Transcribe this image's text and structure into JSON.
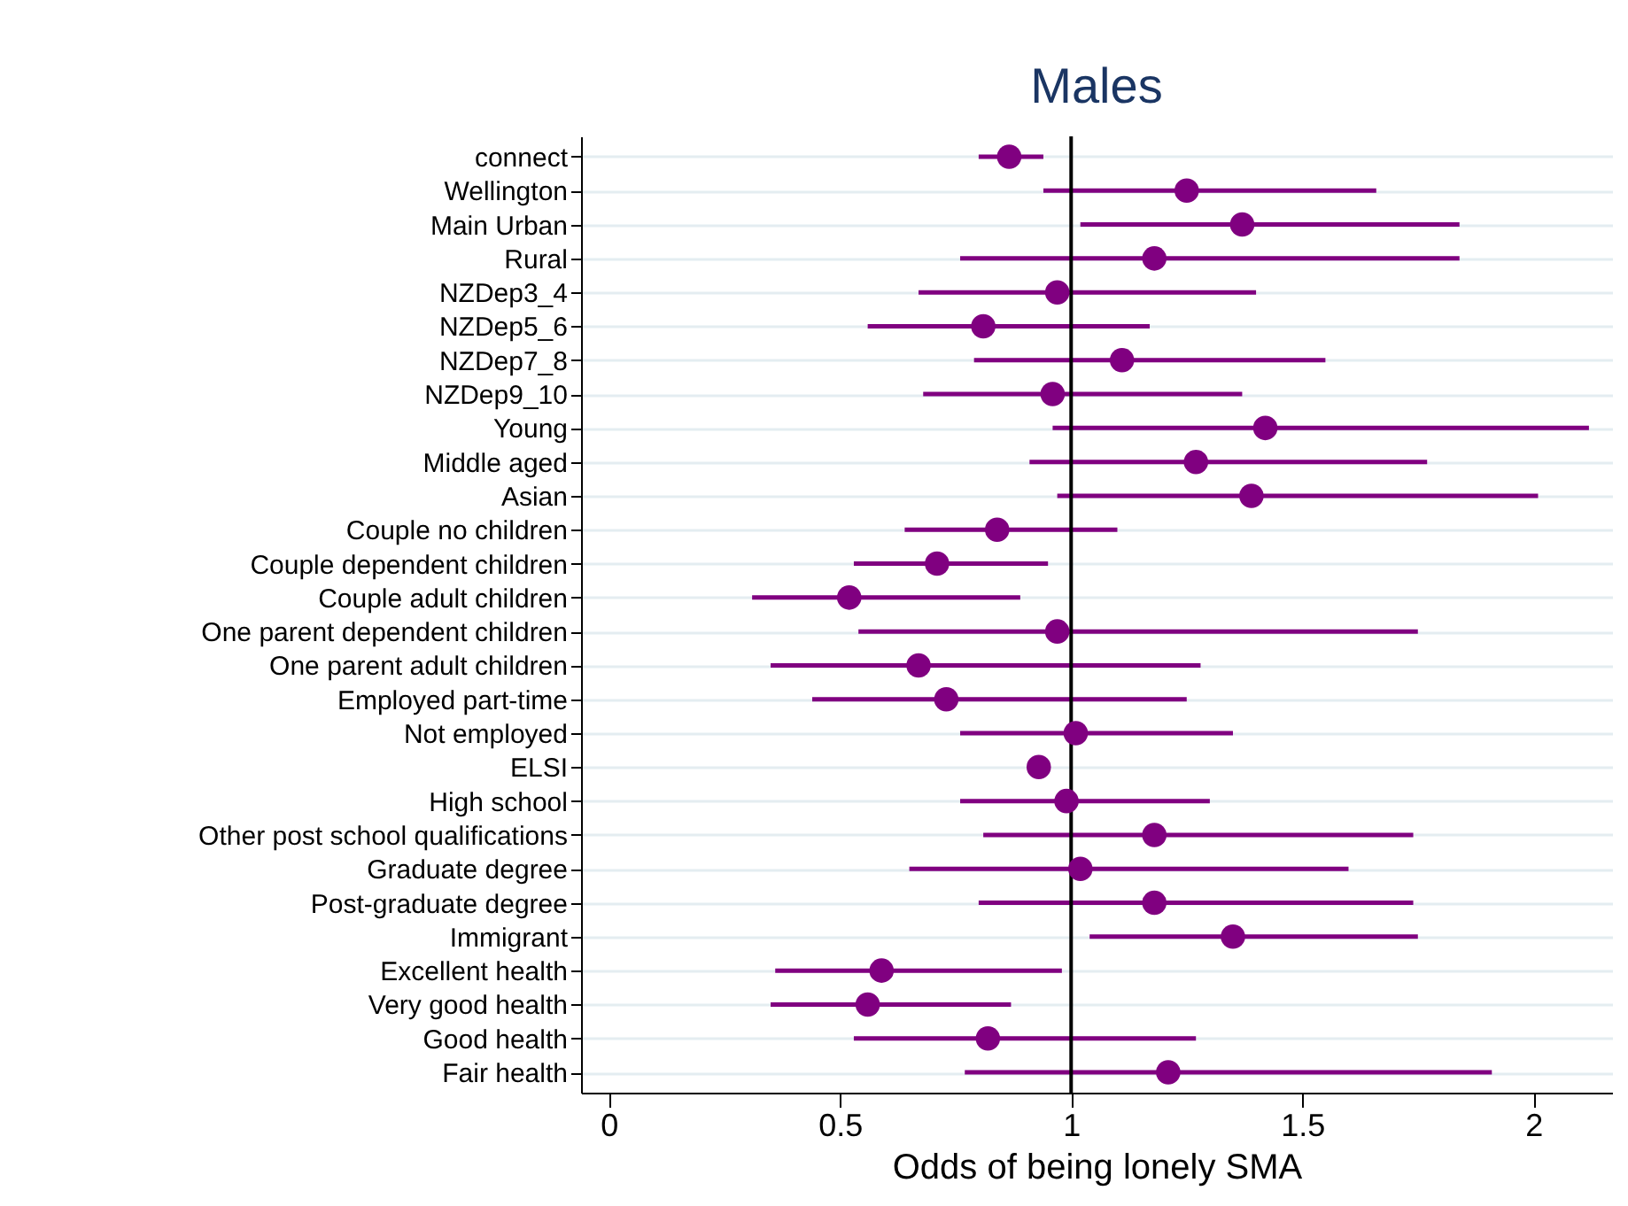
{
  "chart_data": {
    "type": "scatter",
    "title": "Males",
    "xlabel": "Odds of being lonely SMA",
    "orientation": "horizontal",
    "categories": [
      "connect",
      "Wellington",
      "Main Urban",
      "Rural",
      "NZDep3_4",
      "NZDep5_6",
      "NZDep7_8",
      "NZDep9_10",
      "Young",
      "Middle aged",
      "Asian",
      "Couple no children",
      "Couple dependent children",
      "Couple adult children",
      "One parent dependent children",
      "One parent adult children",
      "Employed part-time",
      "Not employed",
      "ELSI",
      "High school",
      "Other post school qualifications",
      "Graduate degree",
      "Post-graduate degree",
      "Immigrant",
      "Excellent health",
      "Very good health",
      "Good health",
      "Fair health"
    ],
    "series": [
      {
        "color": "#800080",
        "values": [
          0.866,
          1.25,
          1.37,
          1.18,
          0.97,
          0.81,
          1.11,
          0.96,
          1.42,
          1.27,
          1.39,
          0.84,
          0.71,
          0.52,
          0.97,
          0.67,
          0.73,
          1.01,
          0.93,
          0.99,
          1.18,
          1.02,
          1.18,
          1.35,
          0.59,
          0.56,
          0.82,
          1.21
        ],
        "errors": [
          [
            0.8,
            0.94
          ],
          [
            0.94,
            1.66
          ],
          [
            1.02,
            1.84
          ],
          [
            0.76,
            1.84
          ],
          [
            0.67,
            1.4
          ],
          [
            0.56,
            1.17
          ],
          [
            0.79,
            1.55
          ],
          [
            0.68,
            1.37
          ],
          [
            0.96,
            2.12
          ],
          [
            0.91,
            1.77
          ],
          [
            0.97,
            2.01
          ],
          [
            0.64,
            1.1
          ],
          [
            0.53,
            0.95
          ],
          [
            0.31,
            0.89
          ],
          [
            0.54,
            1.75
          ],
          [
            0.35,
            1.28
          ],
          [
            0.44,
            1.25
          ],
          [
            0.76,
            1.35
          ],
          null,
          [
            0.76,
            1.3
          ],
          [
            0.81,
            1.74
          ],
          [
            0.65,
            1.6
          ],
          [
            0.8,
            1.74
          ],
          [
            1.04,
            1.75
          ],
          [
            0.36,
            0.98
          ],
          [
            0.35,
            0.87
          ],
          [
            0.53,
            1.27
          ],
          [
            0.77,
            1.91
          ]
        ]
      }
    ],
    "xlim": [
      -0.06,
      2.17
    ],
    "xticks": [
      0,
      0.5,
      1,
      1.5,
      2
    ],
    "ref_lines": [
      {
        "axis": "x",
        "value": 1,
        "color": "#000000"
      }
    ],
    "grid": "y",
    "marker": "circle"
  }
}
